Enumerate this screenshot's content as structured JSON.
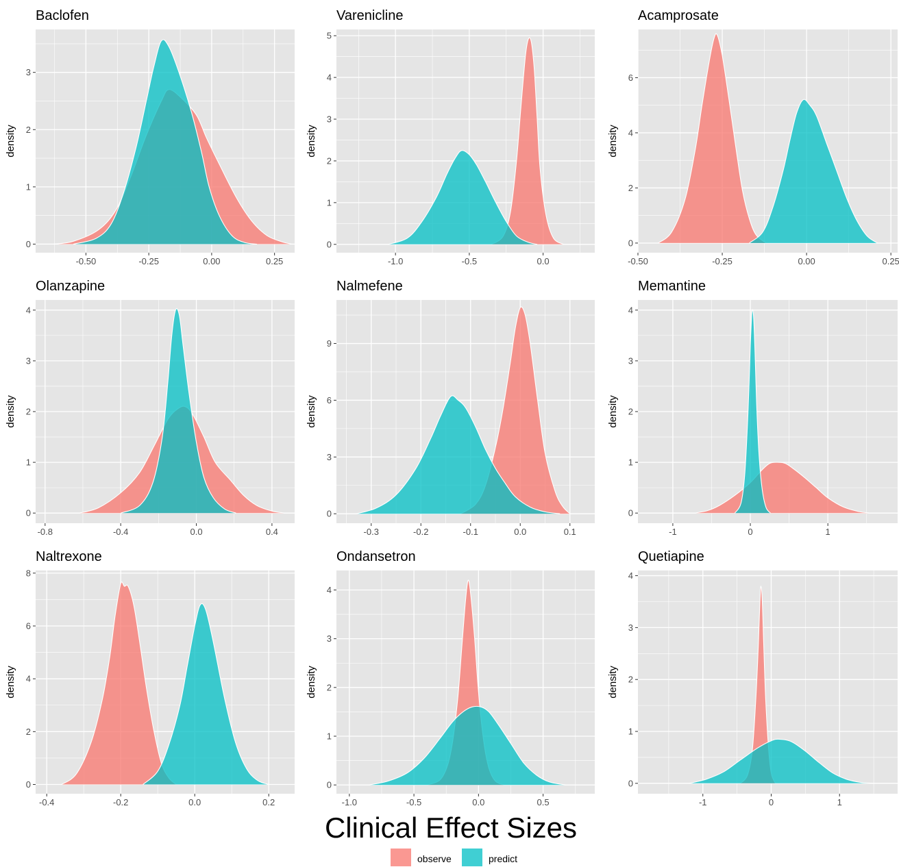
{
  "figure": {
    "xlabel": "Clinical Effect Sizes",
    "legend": [
      {
        "key": "observe",
        "label": "observe",
        "color": "#F8766D"
      },
      {
        "key": "predict",
        "label": "predict",
        "color": "#00BFC4"
      }
    ],
    "legend_placement": "bottom-center",
    "panel_background": "#E5E5E5",
    "grid_color": "#FFFFFF"
  },
  "chart_data": [
    {
      "type": "area",
      "title": "Baclofen",
      "ylabel": "density",
      "xlim": [
        -0.7,
        0.33
      ],
      "ylim": [
        -0.15,
        3.75
      ],
      "xticks": [
        -0.5,
        -0.25,
        0.0,
        0.25
      ],
      "xtick_labels": [
        "-0.50",
        "-0.25",
        "0.00",
        "0.25"
      ],
      "yticks": [
        0,
        1,
        2,
        3
      ],
      "ytick_labels": [
        "0",
        "1",
        "2",
        "3"
      ],
      "series": [
        {
          "name": "observe",
          "x": [
            -0.63,
            -0.55,
            -0.45,
            -0.38,
            -0.32,
            -0.26,
            -0.2,
            -0.17,
            -0.12,
            -0.06,
            -0.02,
            0.03,
            0.1,
            0.16,
            0.22,
            0.28,
            0.32
          ],
          "y": [
            0,
            0.05,
            0.25,
            0.6,
            1.2,
            1.9,
            2.5,
            2.7,
            2.55,
            2.25,
            1.85,
            1.4,
            0.8,
            0.4,
            0.15,
            0.04,
            0
          ]
        },
        {
          "name": "predict",
          "x": [
            -0.55,
            -0.46,
            -0.4,
            -0.35,
            -0.3,
            -0.26,
            -0.23,
            -0.2,
            -0.17,
            -0.13,
            -0.08,
            -0.04,
            -0.01,
            0.03,
            0.08,
            0.13,
            0.18
          ],
          "y": [
            0,
            0.1,
            0.35,
            0.9,
            1.7,
            2.5,
            3.1,
            3.55,
            3.45,
            3.0,
            2.3,
            1.6,
            1.0,
            0.5,
            0.15,
            0.03,
            0
          ]
        }
      ]
    },
    {
      "type": "area",
      "title": "Varenicline",
      "ylabel": "density",
      "xlim": [
        -1.4,
        0.35
      ],
      "ylim": [
        -0.2,
        5.15
      ],
      "xticks": [
        -1.0,
        -0.5,
        0.0
      ],
      "xtick_labels": [
        "-1.0",
        "-0.5",
        "0.0"
      ],
      "yticks": [
        0,
        1,
        2,
        3,
        4,
        5
      ],
      "ytick_labels": [
        "0",
        "1",
        "2",
        "3",
        "4",
        "5"
      ],
      "series": [
        {
          "name": "observe",
          "x": [
            -0.35,
            -0.27,
            -0.22,
            -0.18,
            -0.15,
            -0.12,
            -0.1,
            -0.08,
            -0.06,
            -0.04,
            -0.02,
            0.02,
            0.07,
            0.14
          ],
          "y": [
            0,
            0.2,
            0.8,
            2.0,
            3.3,
            4.5,
            4.92,
            4.85,
            4.2,
            3.0,
            1.8,
            0.7,
            0.15,
            0
          ]
        },
        {
          "name": "predict",
          "x": [
            -1.05,
            -0.92,
            -0.82,
            -0.72,
            -0.65,
            -0.59,
            -0.55,
            -0.5,
            -0.45,
            -0.39,
            -0.32,
            -0.25,
            -0.18,
            -0.1,
            -0.04
          ],
          "y": [
            0,
            0.15,
            0.55,
            1.15,
            1.7,
            2.1,
            2.25,
            2.15,
            1.9,
            1.5,
            1.0,
            0.55,
            0.2,
            0.05,
            0
          ]
        }
      ]
    },
    {
      "type": "area",
      "title": "Acamprosate",
      "ylabel": "density",
      "xlim": [
        -0.5,
        0.27
      ],
      "ylim": [
        -0.35,
        7.75
      ],
      "xticks": [
        -0.5,
        -0.25,
        0.0,
        0.25
      ],
      "xtick_labels": [
        "-0.50",
        "-0.25",
        "0.00",
        "0.25"
      ],
      "yticks": [
        0,
        2,
        4,
        6
      ],
      "ytick_labels": [
        "0",
        "2",
        "4",
        "6"
      ],
      "series": [
        {
          "name": "observe",
          "x": [
            -0.44,
            -0.4,
            -0.36,
            -0.33,
            -0.31,
            -0.29,
            -0.275,
            -0.265,
            -0.25,
            -0.23,
            -0.21,
            -0.19,
            -0.17,
            -0.15,
            -0.12
          ],
          "y": [
            0,
            0.4,
            1.6,
            3.4,
            5.0,
            6.5,
            7.4,
            7.55,
            6.8,
            5.2,
            3.5,
            1.9,
            0.9,
            0.3,
            0
          ]
        },
        {
          "name": "predict",
          "x": [
            -0.17,
            -0.13,
            -0.1,
            -0.07,
            -0.05,
            -0.03,
            -0.01,
            0.01,
            0.03,
            0.06,
            0.09,
            0.12,
            0.15,
            0.18,
            0.21
          ],
          "y": [
            0,
            0.4,
            1.3,
            2.6,
            3.7,
            4.7,
            5.2,
            5.0,
            4.6,
            3.6,
            2.6,
            1.6,
            0.8,
            0.25,
            0
          ]
        }
      ]
    },
    {
      "type": "area",
      "title": "Olanzapine",
      "ylabel": "density",
      "xlim": [
        -0.85,
        0.52
      ],
      "ylim": [
        -0.2,
        4.2
      ],
      "xticks": [
        -0.8,
        -0.4,
        0.0,
        0.4
      ],
      "xtick_labels": [
        "-0.8",
        "-0.4",
        "0.0",
        "0.4"
      ],
      "yticks": [
        0,
        1,
        2,
        3,
        4
      ],
      "ytick_labels": [
        "0",
        "1",
        "2",
        "3",
        "4"
      ],
      "series": [
        {
          "name": "observe",
          "x": [
            -0.62,
            -0.52,
            -0.4,
            -0.3,
            -0.22,
            -0.15,
            -0.1,
            -0.06,
            -0.02,
            0.04,
            0.1,
            0.18,
            0.25,
            0.32,
            0.4,
            0.47
          ],
          "y": [
            0,
            0.1,
            0.4,
            0.8,
            1.35,
            1.85,
            2.05,
            2.1,
            1.95,
            1.5,
            1.0,
            0.65,
            0.35,
            0.15,
            0.04,
            0
          ]
        },
        {
          "name": "predict",
          "x": [
            -0.4,
            -0.3,
            -0.23,
            -0.18,
            -0.15,
            -0.13,
            -0.11,
            -0.09,
            -0.07,
            -0.04,
            0.0,
            0.04,
            0.09,
            0.15,
            0.21
          ],
          "y": [
            0,
            0.15,
            0.6,
            1.5,
            2.6,
            3.5,
            4.0,
            3.9,
            3.3,
            2.4,
            1.4,
            0.7,
            0.3,
            0.08,
            0
          ]
        }
      ]
    },
    {
      "type": "area",
      "title": "Nalmefene",
      "ylabel": "density",
      "xlim": [
        -0.37,
        0.15
      ],
      "ylim": [
        -0.5,
        11.3
      ],
      "xticks": [
        -0.3,
        -0.2,
        -0.1,
        0.0,
        0.1
      ],
      "xtick_labels": [
        "-0.3",
        "-0.2",
        "-0.1",
        "0.0",
        "0.1"
      ],
      "yticks": [
        0,
        3,
        6,
        9
      ],
      "ytick_labels": [
        "0",
        "3",
        "6",
        "9"
      ],
      "series": [
        {
          "name": "observe",
          "x": [
            -0.12,
            -0.09,
            -0.07,
            -0.05,
            -0.035,
            -0.02,
            -0.01,
            0.0,
            0.01,
            0.02,
            0.035,
            0.05,
            0.07,
            0.085,
            0.1
          ],
          "y": [
            0,
            0.5,
            1.5,
            3.5,
            5.5,
            8.0,
            9.8,
            10.9,
            10.5,
            9.0,
            6.0,
            3.2,
            1.2,
            0.4,
            0
          ]
        },
        {
          "name": "predict",
          "x": [
            -0.33,
            -0.29,
            -0.25,
            -0.21,
            -0.18,
            -0.16,
            -0.14,
            -0.125,
            -0.11,
            -0.09,
            -0.07,
            -0.05,
            -0.03,
            -0.01,
            0.02,
            0.05,
            0.08
          ],
          "y": [
            0,
            0.3,
            1.0,
            2.4,
            4.0,
            5.2,
            6.2,
            6.0,
            5.6,
            4.6,
            3.4,
            2.4,
            1.6,
            0.9,
            0.35,
            0.1,
            0
          ]
        }
      ]
    },
    {
      "type": "area",
      "title": "Memantine",
      "ylabel": "density",
      "xlim": [
        -1.45,
        1.9
      ],
      "ylim": [
        -0.2,
        4.2
      ],
      "xticks": [
        -1,
        0,
        1
      ],
      "xtick_labels": [
        "-1",
        "0",
        "1"
      ],
      "yticks": [
        0,
        1,
        2,
        3,
        4
      ],
      "ytick_labels": [
        "0",
        "1",
        "2",
        "3",
        "4"
      ],
      "series": [
        {
          "name": "observe",
          "x": [
            -0.72,
            -0.55,
            -0.4,
            -0.2,
            0.0,
            0.15,
            0.25,
            0.35,
            0.45,
            0.55,
            0.7,
            0.85,
            1.0,
            1.2,
            1.4,
            1.55
          ],
          "y": [
            0,
            0.05,
            0.15,
            0.35,
            0.6,
            0.85,
            0.98,
            1.0,
            0.98,
            0.88,
            0.7,
            0.5,
            0.3,
            0.12,
            0.03,
            0
          ]
        },
        {
          "name": "predict",
          "x": [
            -0.2,
            -0.12,
            -0.07,
            -0.03,
            0.0,
            0.02,
            0.04,
            0.06,
            0.08,
            0.11,
            0.15,
            0.2,
            0.26
          ],
          "y": [
            0,
            0.2,
            0.8,
            2.0,
            3.3,
            3.95,
            3.9,
            3.2,
            2.2,
            1.2,
            0.5,
            0.12,
            0
          ]
        }
      ]
    },
    {
      "type": "area",
      "title": "Naltrexone",
      "ylabel": "density",
      "xlim": [
        -0.43,
        0.27
      ],
      "ylim": [
        -0.35,
        8.1
      ],
      "xticks": [
        -0.4,
        -0.2,
        0.0,
        0.2
      ],
      "xtick_labels": [
        "-0.4",
        "-0.2",
        "0.0",
        "0.2"
      ],
      "yticks": [
        0,
        2,
        4,
        6,
        8
      ],
      "ytick_labels": [
        "0",
        "2",
        "4",
        "6",
        "8"
      ],
      "series": [
        {
          "name": "observe",
          "x": [
            -0.36,
            -0.32,
            -0.28,
            -0.25,
            -0.23,
            -0.215,
            -0.2,
            -0.19,
            -0.18,
            -0.165,
            -0.15,
            -0.13,
            -0.11,
            -0.09,
            -0.07,
            -0.05
          ],
          "y": [
            0,
            0.4,
            1.6,
            3.2,
            4.8,
            6.4,
            7.6,
            7.5,
            7.5,
            6.8,
            5.5,
            3.6,
            2.0,
            0.8,
            0.25,
            0
          ]
        },
        {
          "name": "predict",
          "x": [
            -0.14,
            -0.1,
            -0.07,
            -0.04,
            -0.02,
            0.0,
            0.015,
            0.03,
            0.05,
            0.08,
            0.11,
            0.14,
            0.17,
            0.2
          ],
          "y": [
            0,
            0.5,
            1.5,
            3.0,
            4.5,
            6.0,
            6.8,
            6.6,
            5.4,
            3.3,
            1.6,
            0.6,
            0.15,
            0
          ]
        }
      ]
    },
    {
      "type": "area",
      "title": "Ondansetron",
      "ylabel": "density",
      "xlim": [
        -1.1,
        0.9
      ],
      "ylim": [
        -0.18,
        4.4
      ],
      "xticks": [
        -1.0,
        -0.5,
        0.0,
        0.5
      ],
      "xtick_labels": [
        "-1.0",
        "-0.5",
        "0.0",
        "0.5"
      ],
      "yticks": [
        0,
        1,
        2,
        3,
        4
      ],
      "ytick_labels": [
        "0",
        "1",
        "2",
        "3",
        "4"
      ],
      "series": [
        {
          "name": "observe",
          "x": [
            -0.4,
            -0.3,
            -0.24,
            -0.2,
            -0.16,
            -0.13,
            -0.1,
            -0.08,
            -0.06,
            -0.03,
            0.0,
            0.04,
            0.08,
            0.13,
            0.2
          ],
          "y": [
            0,
            0.1,
            0.4,
            0.9,
            1.8,
            2.8,
            3.8,
            4.2,
            3.9,
            3.0,
            1.9,
            0.9,
            0.35,
            0.08,
            0
          ]
        },
        {
          "name": "predict",
          "x": [
            -0.85,
            -0.7,
            -0.55,
            -0.42,
            -0.3,
            -0.2,
            -0.12,
            -0.05,
            0.02,
            0.08,
            0.15,
            0.25,
            0.35,
            0.45,
            0.55,
            0.68
          ],
          "y": [
            0,
            0.08,
            0.25,
            0.55,
            0.95,
            1.3,
            1.5,
            1.6,
            1.6,
            1.5,
            1.25,
            0.85,
            0.45,
            0.2,
            0.06,
            0
          ]
        }
      ]
    },
    {
      "type": "area",
      "title": "Quetiapine",
      "ylabel": "density",
      "xlim": [
        -1.95,
        1.85
      ],
      "ylim": [
        -0.2,
        4.1
      ],
      "xticks": [
        -1,
        0,
        1
      ],
      "xtick_labels": [
        "-1",
        "0",
        "1"
      ],
      "yticks": [
        0,
        1,
        2,
        3,
        4
      ],
      "ytick_labels": [
        "0",
        "1",
        "2",
        "3",
        "4"
      ],
      "series": [
        {
          "name": "observe",
          "x": [
            -0.45,
            -0.35,
            -0.28,
            -0.23,
            -0.19,
            -0.165,
            -0.15,
            -0.13,
            -0.11,
            -0.08,
            -0.04,
            0.0,
            0.06
          ],
          "y": [
            0,
            0.15,
            0.6,
            1.5,
            2.6,
            3.5,
            3.8,
            3.5,
            2.7,
            1.6,
            0.7,
            0.2,
            0
          ]
        },
        {
          "name": "predict",
          "x": [
            -1.2,
            -0.95,
            -0.7,
            -0.45,
            -0.2,
            0.0,
            0.12,
            0.3,
            0.5,
            0.7,
            0.9,
            1.1,
            1.3,
            1.5
          ],
          "y": [
            0,
            0.08,
            0.22,
            0.45,
            0.68,
            0.82,
            0.85,
            0.8,
            0.62,
            0.4,
            0.2,
            0.08,
            0.02,
            0
          ]
        }
      ]
    }
  ]
}
